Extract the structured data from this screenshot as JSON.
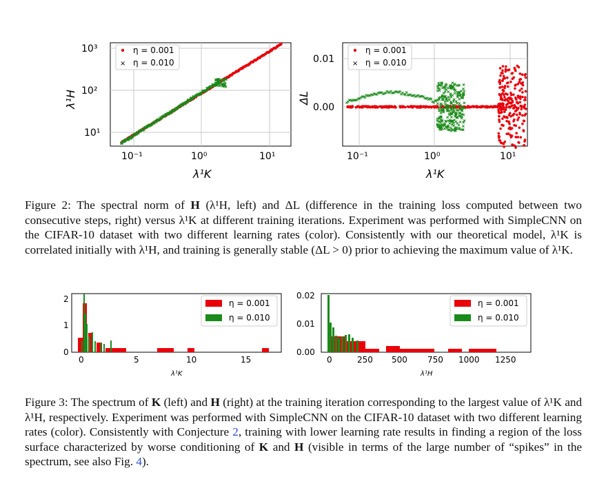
{
  "figure2": {
    "left_plot": {
      "y_ticks": [
        "10¹",
        "10²",
        "10³"
      ],
      "x_ticks": [
        "10⁻¹",
        "10⁰",
        "10¹"
      ],
      "ylabel": "λ¹H",
      "xlabel": "λ¹K",
      "legend": [
        "η = 0.001",
        "η = 0.010"
      ]
    },
    "right_plot": {
      "y_ticks": [
        "0.00",
        "0.01"
      ],
      "x_ticks": [
        "10⁻¹",
        "10⁰",
        "10¹"
      ],
      "ylabel": "ΔL",
      "xlabel": "λ¹K",
      "legend": [
        "η = 0.001",
        "η = 0.010"
      ]
    },
    "caption": {
      "label": "Figure 2:",
      "part1": "The spectral norm of",
      "H": "H",
      "part2": "(λ¹H, left) and ΔL (difference in the training loss computed between two consecutive steps, right) versus λ¹K at different training iterations. Experiment was performed with SimpleCNN on the CIFAR-10 dataset with two different learning rates (color). Consistently with our theoretical model, λ¹K is correlated initially with λ¹H, and training is generally stable (ΔL > 0) prior to achieving the maximum value of λ¹K."
    }
  },
  "figure3": {
    "left_plot": {
      "y_ticks": [
        "0",
        "1",
        "2"
      ],
      "x_ticks": [
        "0",
        "5",
        "10",
        "15"
      ],
      "xlabel": "λ¹K",
      "legend": [
        "η = 0.001",
        "η = 0.010"
      ]
    },
    "right_plot": {
      "y_ticks": [
        "0.00",
        "0.01",
        "0.02"
      ],
      "x_ticks": [
        "0",
        "250",
        "500",
        "750",
        "1000",
        "1250"
      ],
      "xlabel": "λ¹H",
      "legend": [
        "η = 0.001",
        "η = 0.010"
      ]
    },
    "caption": {
      "label": "Figure 3:",
      "text_a": "The spectrum of",
      "K": "K",
      "text_b": "(left) and",
      "H": "H",
      "text_c": "(right) at the training iteration corresponding to the largest value of λ¹K and λ¹H, respectively. Experiment was performed with SimpleCNN on the CIFAR-10 dataset with two different learning rates (color). Consistently with Conjecture",
      "ref_conj": "2",
      "text_d": ", training with lower learning rate results in finding a region of the loss surface characterized by worse conditioning of",
      "K2": "K",
      "text_e": "and",
      "H2": "H",
      "text_f": "(visible in terms of the large number of “spikes” in the spectrum, see also Fig.",
      "ref_fig": "4",
      "text_g": ")."
    }
  },
  "colors": {
    "red_series": "#e8000b",
    "green_series": "#1a8a1a",
    "grid": "#b0b0b0"
  }
}
